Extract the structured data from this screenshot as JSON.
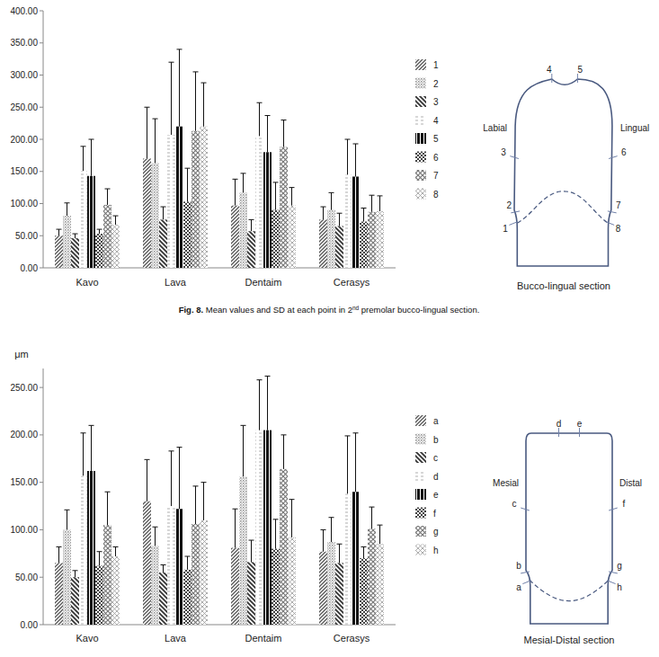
{
  "chart_data": [
    {
      "type": "bar",
      "caption": [
        "Fig. 8.",
        " Mean values and SD at each point in 2",
        "nd",
        " premolar bucco-lingual section."
      ],
      "categories": [
        "Kavo",
        "Lava",
        "Dentaim",
        "Cerasys"
      ],
      "series": [
        {
          "name": "1",
          "color": "#555555",
          "values": [
            50,
            170,
            97,
            75
          ],
          "errors": [
            10,
            80,
            41,
            20
          ]
        },
        {
          "name": "2",
          "color": "#9a9a9a",
          "values": [
            81,
            163,
            117,
            90
          ],
          "errors": [
            20,
            69,
            30,
            27
          ]
        },
        {
          "name": "3",
          "color": "#333333",
          "values": [
            46,
            75,
            57,
            65
          ],
          "errors": [
            7,
            20,
            18,
            20
          ]
        },
        {
          "name": "4",
          "color": "#b0b0b0",
          "values": [
            151,
            207,
            205,
            145
          ],
          "errors": [
            38,
            113,
            52,
            55
          ]
        },
        {
          "name": "5",
          "color": "#111111",
          "values": [
            143,
            220,
            180,
            142
          ],
          "errors": [
            57,
            120,
            57,
            51
          ]
        },
        {
          "name": "6",
          "color": "#444444",
          "values": [
            53,
            103,
            90,
            72
          ],
          "errors": [
            7,
            52,
            43,
            21
          ]
        },
        {
          "name": "7",
          "color": "#777777",
          "values": [
            98,
            213,
            188,
            87
          ],
          "errors": [
            25,
            92,
            42,
            26
          ]
        },
        {
          "name": "8",
          "color": "#999999",
          "values": [
            67,
            220,
            97,
            88
          ],
          "errors": [
            14,
            68,
            28,
            24
          ]
        }
      ],
      "ylim": [
        0,
        400
      ],
      "yticks": [
        {
          "value": 0,
          "label": "0.00"
        },
        {
          "value": 50,
          "label": "50.00"
        },
        {
          "value": 100,
          "label": "100.00"
        },
        {
          "value": 150,
          "label": "150.00"
        },
        {
          "value": 200,
          "label": "200.00"
        },
        {
          "value": 250,
          "label": "250.00"
        },
        {
          "value": 300,
          "label": "300.00"
        },
        {
          "value": 350,
          "label": "350.00"
        },
        {
          "value": 400,
          "label": "400.00"
        }
      ],
      "grid": false,
      "legend": "right",
      "diagram": {
        "title": "Bucco-lingual section",
        "left_label": "Labial",
        "right_label": "Lingual"
      }
    },
    {
      "type": "bar",
      "y_label": "μm",
      "categories": [
        "Kavo",
        "Lava",
        "Dentaim",
        "Cerasys"
      ],
      "series": [
        {
          "name": "a",
          "color": "#555555",
          "values": [
            65,
            130,
            81,
            77
          ],
          "errors": [
            17,
            44,
            41,
            23
          ]
        },
        {
          "name": "b",
          "color": "#9a9a9a",
          "values": [
            100,
            83,
            156,
            87
          ],
          "errors": [
            21,
            20,
            54,
            26
          ]
        },
        {
          "name": "c",
          "color": "#333333",
          "values": [
            50,
            55,
            66,
            65
          ],
          "errors": [
            7,
            8,
            23,
            20
          ]
        },
        {
          "name": "d",
          "color": "#b0b0b0",
          "values": [
            157,
            125,
            205,
            138
          ],
          "errors": [
            45,
            58,
            53,
            61
          ]
        },
        {
          "name": "e",
          "color": "#111111",
          "values": [
            162,
            122,
            205,
            140
          ],
          "errors": [
            48,
            65,
            57,
            62
          ]
        },
        {
          "name": "f",
          "color": "#444444",
          "values": [
            62,
            58,
            80,
            70
          ],
          "errors": [
            15,
            14,
            31,
            12
          ]
        },
        {
          "name": "g",
          "color": "#777777",
          "values": [
            105,
            106,
            164,
            101
          ],
          "errors": [
            35,
            40,
            36,
            23
          ]
        },
        {
          "name": "h",
          "color": "#999999",
          "values": [
            72,
            110,
            92,
            85
          ],
          "errors": [
            10,
            40,
            40,
            20
          ]
        }
      ],
      "ylim": [
        0,
        270
      ],
      "yticks": [
        {
          "value": 0,
          "label": "0.00"
        },
        {
          "value": 50,
          "label": "50.00"
        },
        {
          "value": 100,
          "label": "100.00"
        },
        {
          "value": 150,
          "label": "150.00"
        },
        {
          "value": 200,
          "label": "200.00"
        },
        {
          "value": 250,
          "label": "250.00"
        }
      ],
      "grid": false,
      "legend": "right",
      "diagram": {
        "title": "Mesial-Distal section",
        "left_label": "Mesial",
        "right_label": "Distal"
      }
    }
  ]
}
